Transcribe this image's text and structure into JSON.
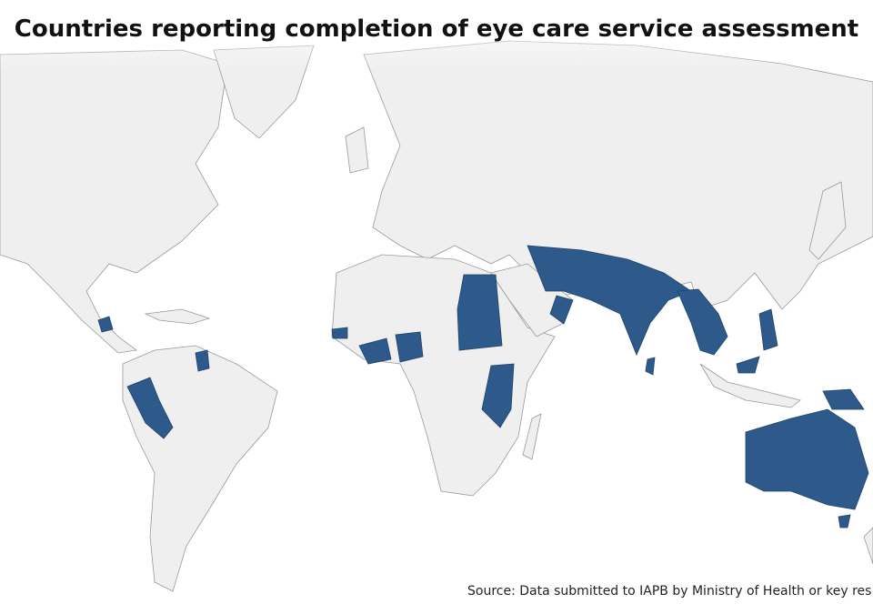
{
  "title": "Countries reporting completion of eye care service assessment",
  "source": "Source: Data submitted to IAPB by Ministry of Health or key res"
}
